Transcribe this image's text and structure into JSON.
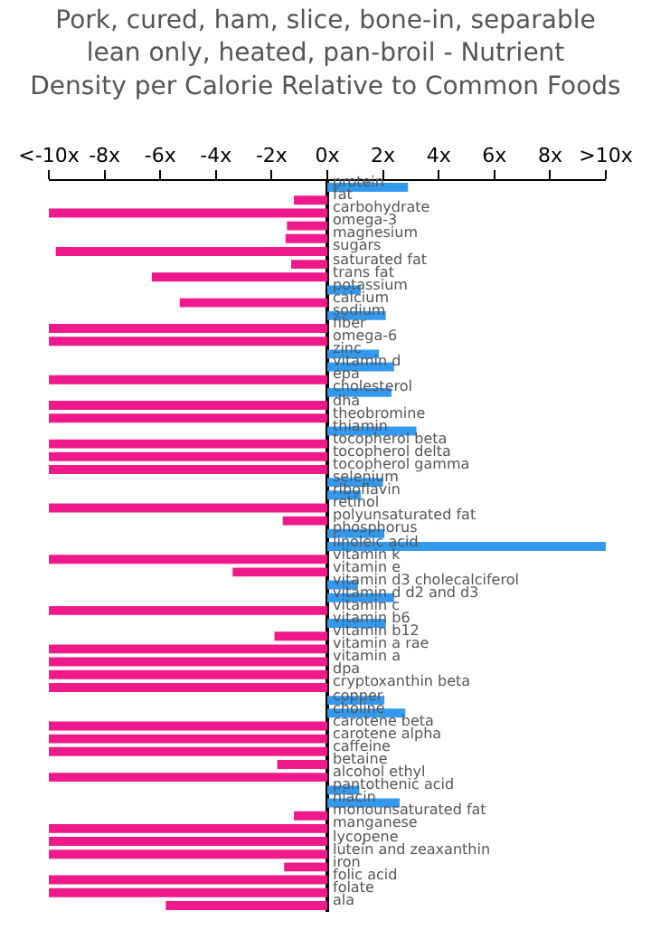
{
  "chart_data": {
    "type": "bar",
    "orientation": "horizontal",
    "title": "Pork, cured, ham, slice, bone-in, separable lean only, heated, pan-broil - Nutrient Density per Calorie Relative to Common Foods",
    "categories": [
      "protein",
      "fat",
      "carbohydrate",
      "omega-3",
      "magnesium",
      "sugars",
      "saturated fat",
      "trans fat",
      "potassium",
      "calcium",
      "sodium",
      "fiber",
      "omega-6",
      "zinc",
      "vitamin d",
      "epa",
      "cholesterol",
      "dha",
      "theobromine",
      "thiamin",
      "tocopherol beta",
      "tocopherol delta",
      "tocopherol gamma",
      "selenium",
      "riboflavin",
      "retinol",
      "polyunsaturated fat",
      "phosphorus",
      "linoleic acid",
      "vitamin k",
      "vitamin e",
      "vitamin d3 cholecalciferol",
      "vitamin d d2 and d3",
      "vitamin c",
      "vitamin b6",
      "vitamin b12",
      "vitamin a rae",
      "vitamin a",
      "dpa",
      "cryptoxanthin beta",
      "copper",
      "choline",
      "carotene beta",
      "carotene alpha",
      "caffeine",
      "betaine",
      "alcohol ethyl",
      "pantothenic acid",
      "niacin",
      "monounsaturated fat",
      "manganese",
      "lycopene",
      "lutein and zeaxanthin",
      "iron",
      "folic acid",
      "folate",
      "ala"
    ],
    "values": [
      2.9,
      -1.2,
      -10,
      -1.45,
      -1.5,
      -9.75,
      -1.3,
      -6.3,
      1.2,
      -5.3,
      2.1,
      -10,
      -10,
      1.85,
      2.4,
      -10,
      2.3,
      -10,
      -10,
      3.2,
      -10,
      -10,
      -10,
      2.0,
      1.2,
      -10,
      -1.6,
      2.05,
      10,
      -10,
      -3.4,
      1.1,
      2.4,
      -10,
      2.1,
      -1.9,
      -10,
      -10,
      -10,
      -10,
      2.05,
      2.8,
      -10,
      -10,
      -10,
      -1.8,
      -10,
      1.15,
      2.6,
      -1.2,
      -10,
      -10,
      -10,
      -1.55,
      -10,
      -10,
      -5.8
    ],
    "colors": [
      "#3399ee",
      "#f0198c",
      "#f0198c",
      "#f0198c",
      "#f0198c",
      "#f0198c",
      "#f0198c",
      "#f0198c",
      "#3399ee",
      "#f0198c",
      "#3399ee",
      "#f0198c",
      "#f0198c",
      "#3399ee",
      "#3399ee",
      "#f0198c",
      "#3399ee",
      "#f0198c",
      "#f0198c",
      "#3399ee",
      "#f0198c",
      "#f0198c",
      "#f0198c",
      "#3399ee",
      "#3399ee",
      "#f0198c",
      "#f0198c",
      "#3399ee",
      "#3399ee",
      "#f0198c",
      "#f0198c",
      "#3399ee",
      "#3399ee",
      "#f0198c",
      "#3399ee",
      "#f0198c",
      "#f0198c",
      "#f0198c",
      "#f0198c",
      "#f0198c",
      "#3399ee",
      "#3399ee",
      "#f0198c",
      "#f0198c",
      "#f0198c",
      "#f0198c",
      "#f0198c",
      "#3399ee",
      "#3399ee",
      "#f0198c",
      "#f0198c",
      "#f0198c",
      "#f0198c",
      "#f0198c",
      "#f0198c",
      "#f0198c",
      "#f0198c"
    ],
    "xlim": [
      -10,
      10
    ],
    "xticks": [
      {
        "value": -10,
        "label": "<-10x"
      },
      {
        "value": -8,
        "label": "-8x"
      },
      {
        "value": -6,
        "label": "-6x"
      },
      {
        "value": -4,
        "label": "-4x"
      },
      {
        "value": -2,
        "label": "-2x"
      },
      {
        "value": 0,
        "label": "0x"
      },
      {
        "value": 2,
        "label": "2x"
      },
      {
        "value": 4,
        "label": "4x"
      },
      {
        "value": 6,
        "label": "6x"
      },
      {
        "value": 8,
        "label": "8x"
      },
      {
        "value": 10,
        "label": ">10x"
      }
    ],
    "legend": false
  }
}
